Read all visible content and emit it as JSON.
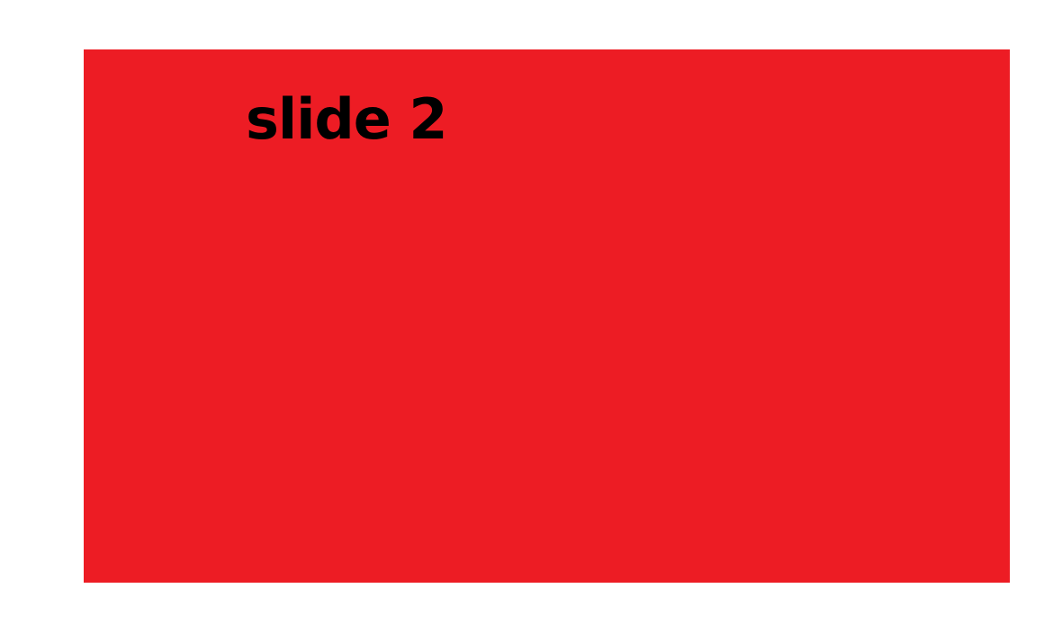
{
  "slide": {
    "title": "slide 2",
    "background_color": "#ed1c24",
    "text_color": "#000000"
  }
}
